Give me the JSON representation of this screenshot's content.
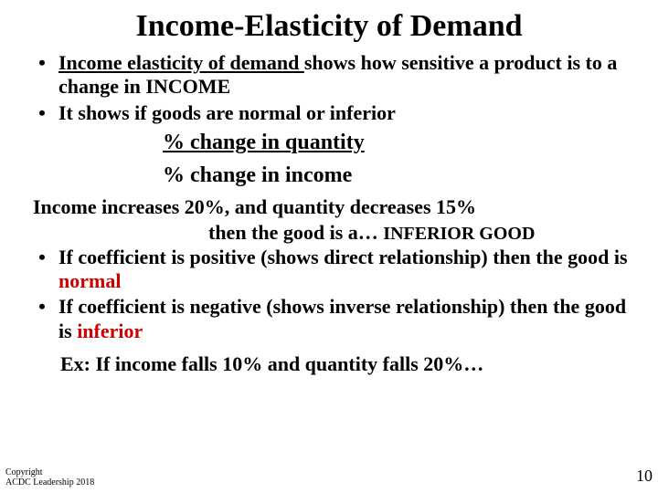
{
  "title": "Income-Elasticity of Demand",
  "bullets1": {
    "b1_underlined": "Income elasticity of demand ",
    "b1_rest": "shows how sensitive a product is to a change in INCOME",
    "b2": "It shows if goods are normal or inferior"
  },
  "formula": {
    "numerator": "% change in quantity",
    "denominator": "% change in income"
  },
  "example": {
    "line1": "Income increases 20%, and quantity decreases 15%",
    "line2_prefix": "then the good is a… ",
    "line2_answer": "INFERIOR GOOD"
  },
  "bullets2": {
    "b1_text": "If coefficient is positive (shows direct relationship) then the good is ",
    "b1_red": "normal",
    "b2_text": "If coefficient is negative (shows inverse relationship) then the good is ",
    "b2_red": "inferior"
  },
  "final_example": "Ex: If income falls 10% and quantity falls 20%…",
  "copyright": {
    "line1": "Copyright",
    "line2": "ACDC Leadership 2018"
  },
  "pagenum": "10",
  "colors": {
    "text": "#000000",
    "red": "#cc0000",
    "background": "#ffffff"
  },
  "fonts": {
    "family": "Times New Roman",
    "title_size": 34,
    "body_size": 22,
    "formula_size": 24
  }
}
